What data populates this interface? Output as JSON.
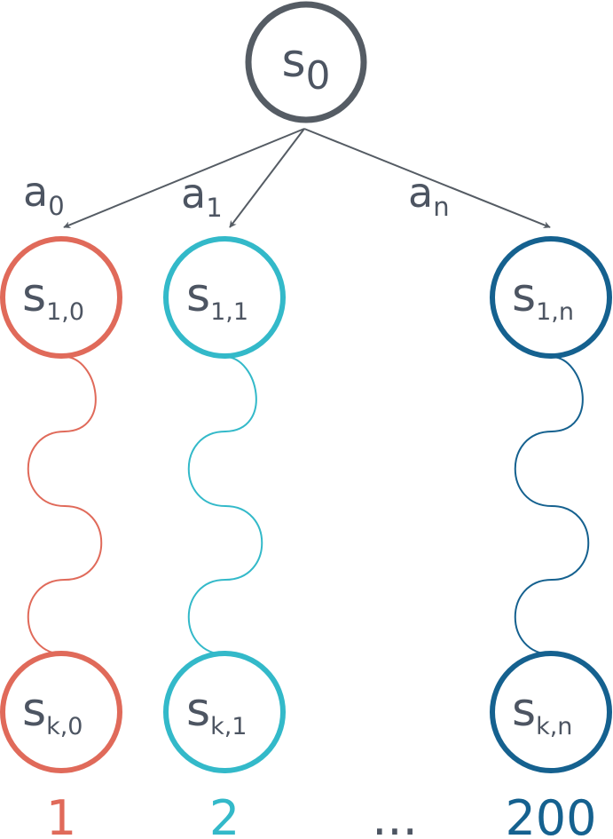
{
  "colors": {
    "root": "#555c64",
    "text": "#4d5562",
    "arrow": "#555c64",
    "branch0": "#e06a5a",
    "branch1": "#33b9c9",
    "branchN": "#15618f"
  },
  "root": {
    "main": "s",
    "sub": "0"
  },
  "actions": [
    {
      "main": "a",
      "sub": "0"
    },
    {
      "main": "a",
      "sub": "1"
    },
    {
      "main": "a",
      "sub": "n"
    }
  ],
  "branches": [
    {
      "color_key": "branch0",
      "top": {
        "main": "s",
        "sub": "1,0"
      },
      "bottom": {
        "main": "s",
        "sub": "k,0"
      },
      "footer": "1"
    },
    {
      "color_key": "branch1",
      "top": {
        "main": "s",
        "sub": "1,1"
      },
      "bottom": {
        "main": "s",
        "sub": "k,1"
      },
      "footer": "2"
    },
    {
      "color_key": "branchN",
      "top": {
        "main": "s",
        "sub": "1,n"
      },
      "bottom": {
        "main": "s",
        "sub": "k,n"
      },
      "footer": "200"
    }
  ],
  "ellipsis": "..."
}
